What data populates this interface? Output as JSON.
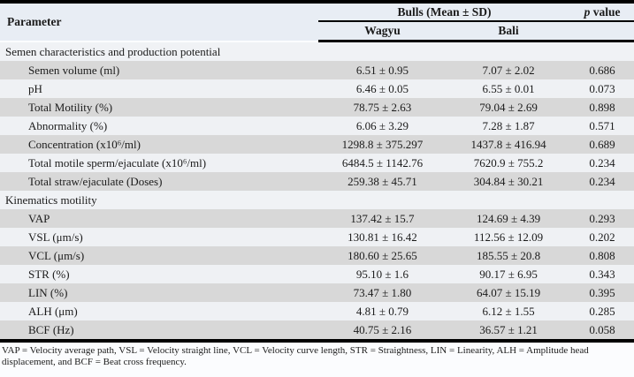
{
  "colors": {
    "stripe_gray": "#d8d8d8",
    "stripe_light": "#eff1f4",
    "header_bg": "#e8edf4",
    "section_bg": "#f0f2f5",
    "rule": "#000000"
  },
  "table": {
    "header": {
      "parameter": "Parameter",
      "group": "Bulls (Mean ± SD)",
      "wagyu": "Wagyu",
      "bali": "Bali",
      "p_italic": "p",
      "p_rest": " value"
    },
    "sections": [
      {
        "title": "Semen characteristics and production potential",
        "rows": [
          {
            "param": "Semen volume (ml)",
            "wagyu": "6.51 ± 0.95",
            "bali": "7.07 ± 2.02",
            "p": "0.686"
          },
          {
            "param": "pH",
            "wagyu": "6.46 ± 0.05",
            "bali": "6.55 ± 0.01",
            "p": "0.073"
          },
          {
            "param": "Total Motility (%)",
            "wagyu": "78.75 ± 2.63",
            "bali": "79.04 ± 2.69",
            "p": "0.898"
          },
          {
            "param": "Abnormality (%)",
            "wagyu": "6.06 ± 3.29",
            "bali": "7.28 ± 1.87",
            "p": "0.571"
          },
          {
            "param": "Concentration (x10⁶/ml)",
            "wagyu": "1298.8 ± 375.297",
            "bali": "1437.8 ± 416.94",
            "p": "0.689"
          },
          {
            "param": "Total motile sperm/ejaculate (x10⁶/ml)",
            "wagyu": "6484.5 ± 1142.76",
            "bali": "7620.9 ± 755.2",
            "p": "0.234"
          },
          {
            "param": "Total straw/ejaculate (Doses)",
            "wagyu": "259.38 ± 45.71",
            "bali": "304.84 ± 30.21",
            "p": "0.234"
          }
        ]
      },
      {
        "title": "Kinematics motility",
        "rows": [
          {
            "param": "VAP",
            "wagyu": "137.42 ± 15.7",
            "bali": "124.69 ± 4.39",
            "p": "0.293"
          },
          {
            "param": "VSL (μm/s)",
            "wagyu": "130.81 ± 16.42",
            "bali": "112.56 ± 12.09",
            "p": "0.202"
          },
          {
            "param": "VCL (μm/s)",
            "wagyu": "180.60 ± 25.65",
            "bali": "185.55 ± 20.8",
            "p": "0.808"
          },
          {
            "param": "STR (%)",
            "wagyu": "95.10 ± 1.6",
            "bali": "90.17 ± 6.95",
            "p": "0.343"
          },
          {
            "param": "LIN (%)",
            "wagyu": "73.47 ± 1.80",
            "bali": "64.07 ± 15.19",
            "p": "0.395"
          },
          {
            "param": "ALH (μm)",
            "wagyu": "4.81 ± 0.79",
            "bali": "6.12 ± 1.55",
            "p": "0.285"
          },
          {
            "param": "BCF (Hz)",
            "wagyu": "40.75 ± 2.16",
            "bali": "36.57 ± 1.21",
            "p": "0.058"
          }
        ]
      }
    ],
    "footnote": "VAP = Velocity average path, VSL = Velocity straight line, VCL = Velocity curve length, STR = Straightness, LIN = Linearity, ALH = Amplitude head displacement, and BCF = Beat cross frequency."
  }
}
